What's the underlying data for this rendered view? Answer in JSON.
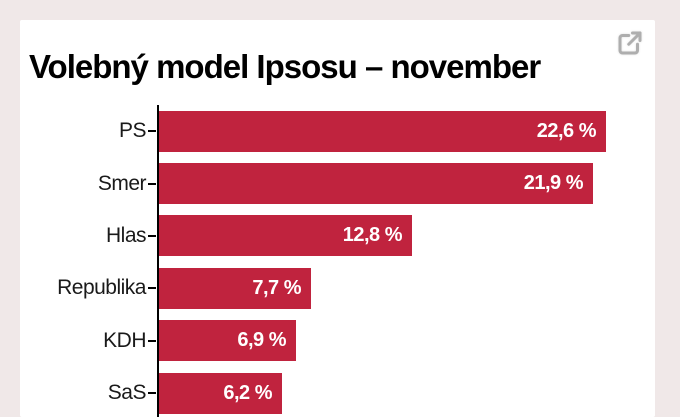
{
  "header": {
    "title": "Volebný model Ipsosu – november",
    "expand_icon": "external-link-icon"
  },
  "colors": {
    "page_background": "#f0e8e8",
    "card_background": "#ffffff",
    "bar": "#c0233e",
    "axis": "#000000",
    "category_label": "#1a1a1a",
    "value_label": "#ffffff",
    "icon": "#aeaeae"
  },
  "chart_data": {
    "type": "bar",
    "orientation": "horizontal",
    "title": "Volebný model Ipsosu – november",
    "categories": [
      "PS",
      "Smer",
      "Hlas",
      "Republika",
      "KDH",
      "SaS"
    ],
    "values": [
      22.6,
      21.9,
      12.8,
      7.7,
      6.9,
      6.2
    ],
    "value_labels": [
      "22,6 %",
      "21,9 %",
      "12,8 %",
      "7,7 %",
      "6,9 %",
      "6,2 %"
    ],
    "unit": "%",
    "xlim": [
      0,
      25
    ],
    "grid": false,
    "legend": false,
    "value_label_position": "inside-end",
    "note": "chart cropped at bottom of viewport"
  }
}
